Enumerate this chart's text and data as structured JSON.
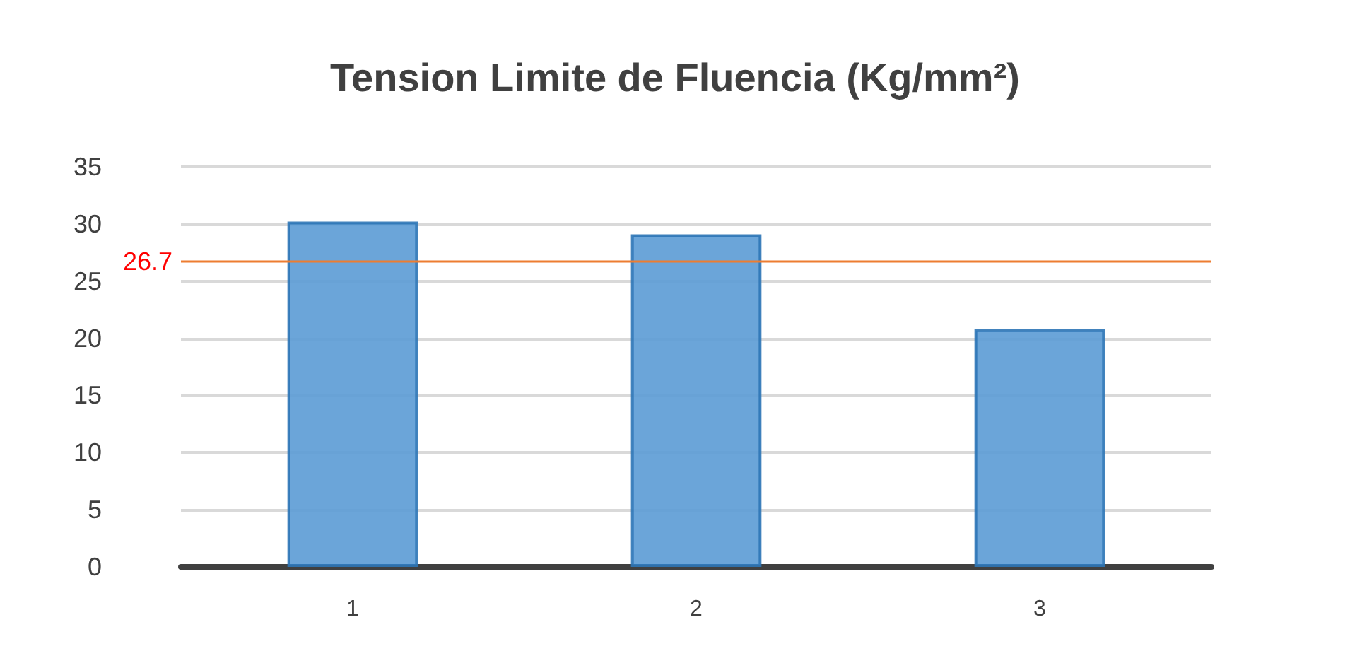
{
  "chart_data": {
    "type": "bar",
    "title": "Tension Limite de Fluencia (Kg/mm²)",
    "categories": [
      "1",
      "2",
      "3"
    ],
    "values": [
      30.2,
      29.1,
      20.8
    ],
    "color": "#5b9bd5",
    "ylim": [
      0,
      35
    ],
    "yticks": [
      0,
      5,
      10,
      15,
      20,
      25,
      30,
      35
    ],
    "grid": "y",
    "ref_lines": [
      {
        "axis": "y",
        "value": 26.7,
        "label": "26.7",
        "color": "#ed7d31"
      }
    ]
  }
}
